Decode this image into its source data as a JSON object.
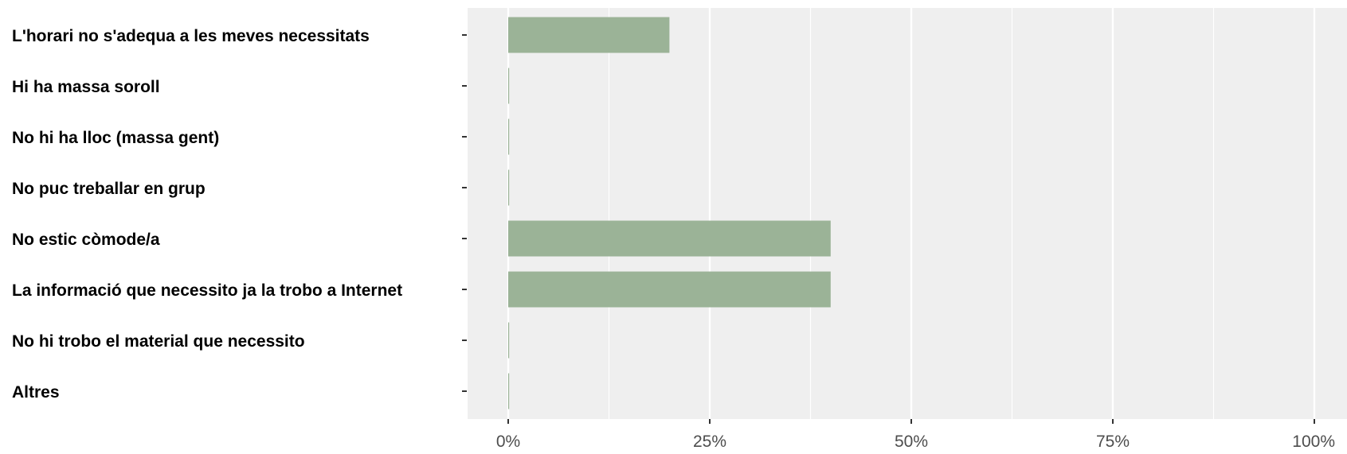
{
  "chart_data": {
    "type": "bar",
    "orientation": "horizontal",
    "categories": [
      "L'horari no s'adequa a les meves necessitats",
      "Hi ha massa soroll",
      "No hi ha lloc (massa gent)",
      "No puc treballar en grup",
      "No estic còmode/a",
      "La informació que necessito ja la trobo a Internet",
      "No hi trobo el material que necessito",
      "Altres"
    ],
    "values": [
      0.2,
      0,
      0,
      0,
      0.4,
      0.4,
      0,
      0
    ],
    "x_ticks": [
      "0%",
      "25%",
      "50%",
      "75%",
      "100%"
    ],
    "xlim": [
      0,
      1
    ],
    "title": "",
    "xlabel": "",
    "ylabel": "",
    "grid": true,
    "legend": "none",
    "colors": {
      "bar": "#9bb397",
      "panel": "#efefef",
      "grid": "#ffffff",
      "tick": "#333333"
    }
  }
}
